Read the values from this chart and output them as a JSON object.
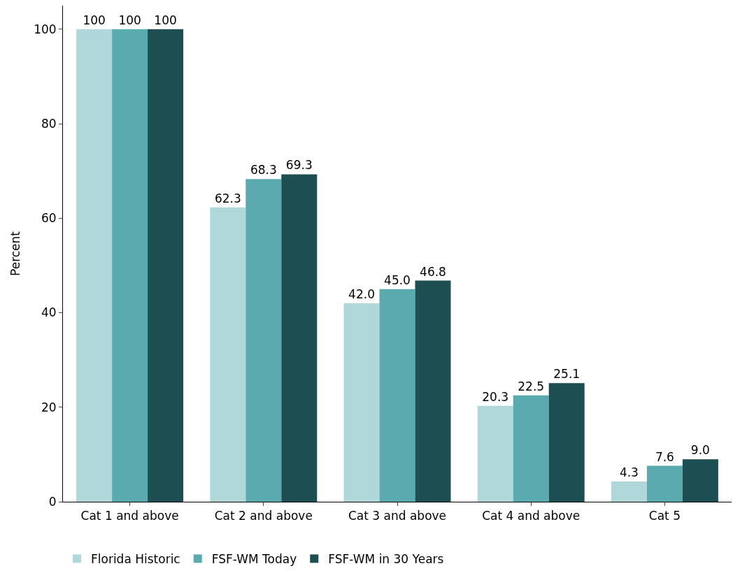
{
  "chart_data": {
    "type": "bar",
    "ylabel": "Percent",
    "categories": [
      "Cat 1 and above",
      "Cat 2 and above",
      "Cat 3 and above",
      "Cat 4 and above",
      "Cat 5"
    ],
    "series": [
      {
        "name": "Florida Historic",
        "color": "#b0d8da",
        "values": [
          100,
          62.3,
          42.0,
          20.3,
          4.3
        ],
        "value_labels": [
          "100",
          "62.3",
          "42.0",
          "20.3",
          "4.3"
        ]
      },
      {
        "name": "FSF-WM Today",
        "color": "#59abb0",
        "values": [
          100,
          68.3,
          45.0,
          22.5,
          7.6
        ],
        "value_labels": [
          "100",
          "68.3",
          "45.0",
          "22.5",
          "7.6"
        ]
      },
      {
        "name": "FSF-WM in 30 Years",
        "color": "#1c4e52",
        "values": [
          100,
          69.3,
          46.8,
          25.1,
          9.0
        ],
        "value_labels": [
          "100",
          "69.3",
          "46.8",
          "25.1",
          "9.0"
        ]
      }
    ],
    "ylim": [
      0,
      105
    ],
    "yticks": [
      0,
      20,
      40,
      60,
      80,
      100
    ],
    "legend": "bottom"
  }
}
